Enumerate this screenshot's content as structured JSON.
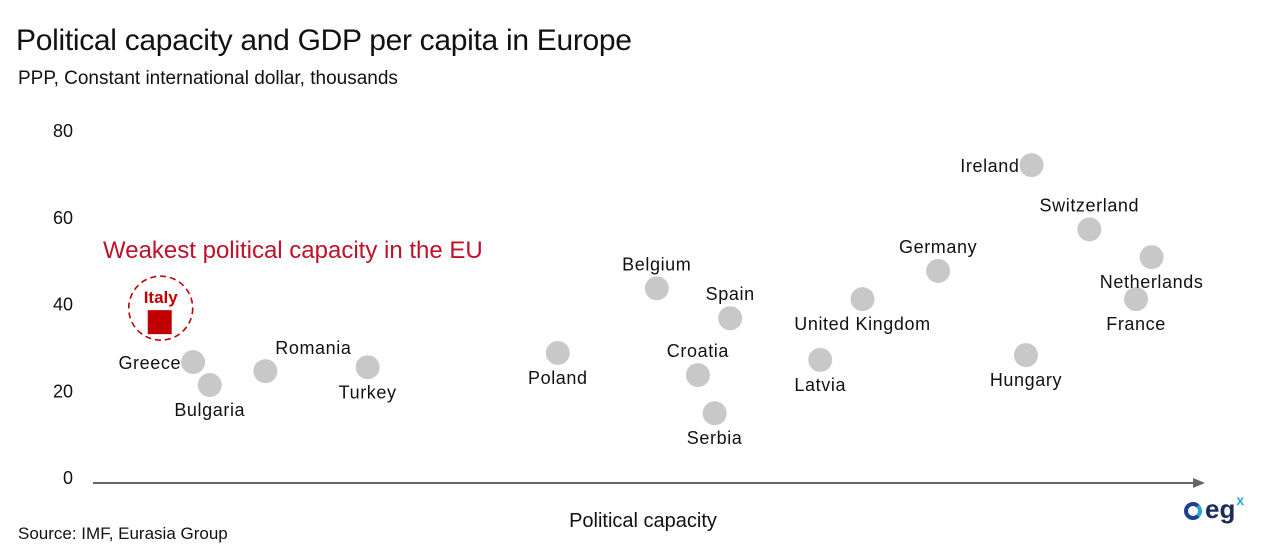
{
  "title": "Political capacity and GDP per capita in Europe",
  "subtitle": "PPP, Constant international dollar, thousands",
  "source": "Source: IMF, Eurasia Group",
  "logo": {
    "text": "eg",
    "superscript": "x"
  },
  "colors": {
    "point": "#c8c8c8",
    "highlight": "#c00000",
    "annotation": "#c0102a",
    "axis": "#666666"
  },
  "chart_data": {
    "type": "scatter",
    "title": "Political capacity and GDP per capita in Europe",
    "subtitle": "PPP, Constant international dollar, thousands",
    "xlabel": "Political capacity",
    "ylabel": "",
    "xlim": [
      0,
      100
    ],
    "ylim": [
      0,
      80
    ],
    "x_ticks_shown": false,
    "yticks": [
      0,
      20,
      40,
      60,
      80
    ],
    "ytick_labels": [
      "0",
      "20",
      "40",
      "60",
      "80"
    ],
    "grid": false,
    "legend": "none",
    "x_note": "x values are relative positions along an unlabeled political capacity axis (0-100 index)",
    "points": [
      {
        "name": "Italy",
        "x": 6.0,
        "y": 35.7,
        "highlight": true,
        "label_pos": "top"
      },
      {
        "name": "Greece",
        "x": 9.0,
        "y": 26.5,
        "label_pos": "left"
      },
      {
        "name": "Bulgaria",
        "x": 10.5,
        "y": 21.2,
        "label_pos": "bottom"
      },
      {
        "name": "Romania",
        "x": 15.5,
        "y": 24.4,
        "label_pos": "top-right"
      },
      {
        "name": "Turkey",
        "x": 24.7,
        "y": 25.3,
        "label_pos": "bottom"
      },
      {
        "name": "Poland",
        "x": 41.8,
        "y": 28.6,
        "label_pos": "bottom"
      },
      {
        "name": "Belgium",
        "x": 50.7,
        "y": 43.5,
        "label_pos": "top"
      },
      {
        "name": "Croatia",
        "x": 54.4,
        "y": 23.5,
        "label_pos": "top"
      },
      {
        "name": "Serbia",
        "x": 55.9,
        "y": 14.7,
        "label_pos": "bottom"
      },
      {
        "name": "Spain",
        "x": 57.3,
        "y": 36.6,
        "label_pos": "top"
      },
      {
        "name": "Latvia",
        "x": 65.4,
        "y": 27.0,
        "label_pos": "bottom"
      },
      {
        "name": "United Kingdom",
        "x": 69.2,
        "y": 41.0,
        "label_pos": "bottom"
      },
      {
        "name": "Germany",
        "x": 76.0,
        "y": 47.5,
        "label_pos": "top"
      },
      {
        "name": "Hungary",
        "x": 83.9,
        "y": 28.1,
        "label_pos": "bottom"
      },
      {
        "name": "Ireland",
        "x": 84.4,
        "y": 71.9,
        "label_pos": "left"
      },
      {
        "name": "Switzerland",
        "x": 89.6,
        "y": 57.1,
        "label_pos": "top"
      },
      {
        "name": "France",
        "x": 93.8,
        "y": 41.0,
        "label_pos": "bottom"
      },
      {
        "name": "Netherlands",
        "x": 95.2,
        "y": 50.7,
        "label_pos": "bottom"
      }
    ],
    "annotations": [
      {
        "text": "Weakest political capacity in the EU",
        "target": "Italy"
      }
    ]
  }
}
